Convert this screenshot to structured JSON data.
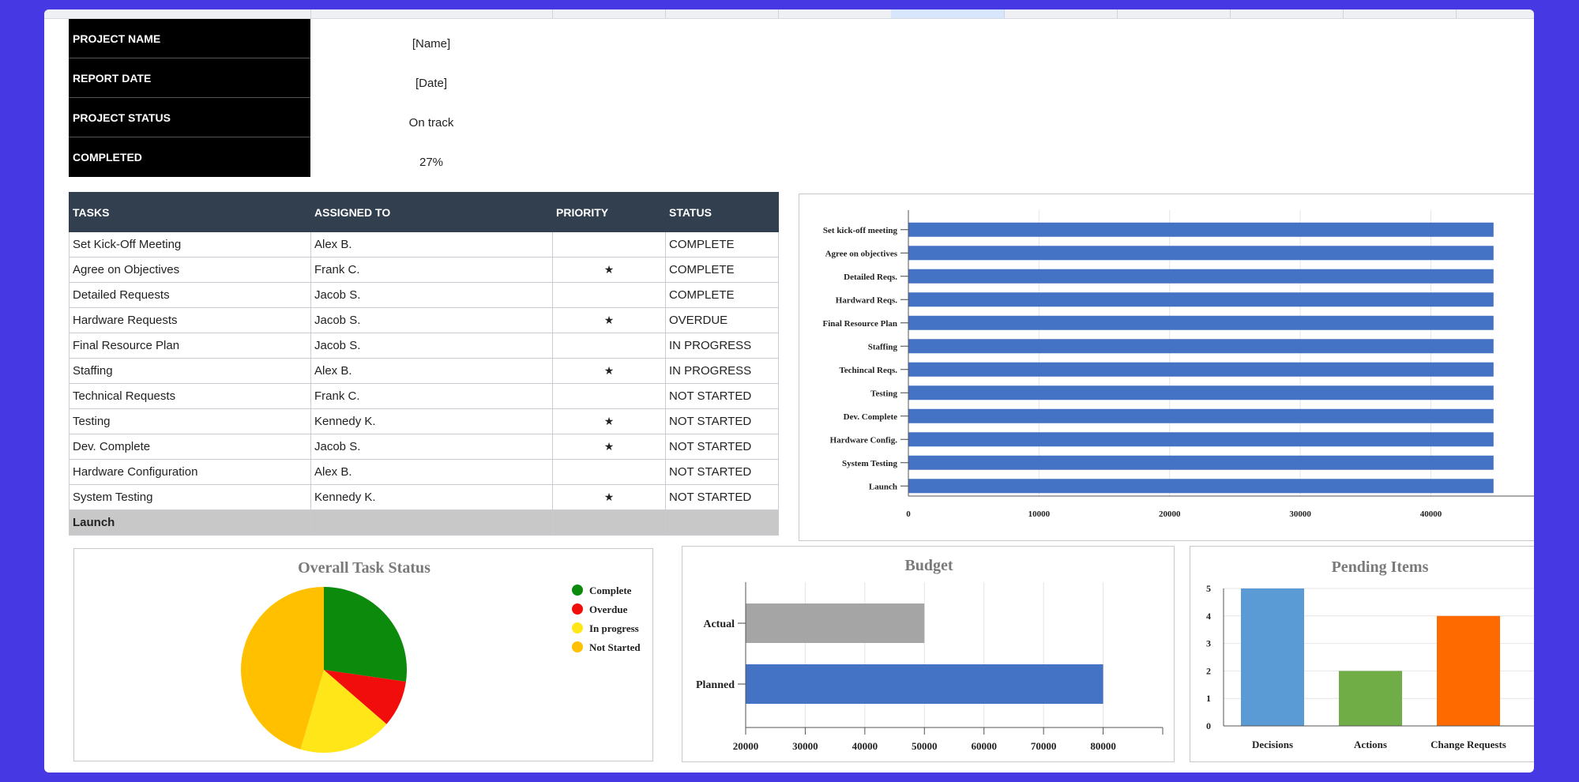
{
  "info": [
    {
      "label": "PROJECT NAME",
      "value": "[Name]"
    },
    {
      "label": "REPORT DATE",
      "value": "[Date]"
    },
    {
      "label": "PROJECT STATUS",
      "value": "On track"
    },
    {
      "label": "COMPLETED",
      "value": "27%"
    }
  ],
  "tasks": {
    "headers": [
      "TASKS",
      "ASSIGNED TO",
      "PRIORITY",
      "STATUS"
    ],
    "rows": [
      {
        "task": "Set Kick-Off Meeting",
        "assigned": "Alex B.",
        "priority": "",
        "status": "COMPLETE",
        "status_class": "st-complete"
      },
      {
        "task": "Agree on Objectives",
        "assigned": "Frank C.",
        "priority": "★",
        "status": "COMPLETE",
        "status_class": "st-complete"
      },
      {
        "task": "Detailed Requests",
        "assigned": "Jacob S.",
        "priority": "",
        "status": "COMPLETE",
        "status_class": "st-complete"
      },
      {
        "task": "Hardware Requests",
        "assigned": "Jacob S.",
        "priority": "★",
        "status": "OVERDUE",
        "status_class": "st-overdue"
      },
      {
        "task": "Final Resource Plan",
        "assigned": "Jacob S.",
        "priority": "",
        "status": "IN PROGRESS",
        "status_class": "st-progress"
      },
      {
        "task": "Staffing",
        "assigned": "Alex B.",
        "priority": "★",
        "status": "IN PROGRESS",
        "status_class": "st-progress"
      },
      {
        "task": "Technical Requests",
        "assigned": "Frank C.",
        "priority": "",
        "status": "NOT STARTED",
        "status_class": "st-notstarted"
      },
      {
        "task": "Testing",
        "assigned": "Kennedy K.",
        "priority": "★",
        "status": "NOT STARTED",
        "status_class": "st-notstarted"
      },
      {
        "task": "Dev. Complete",
        "assigned": "Jacob S.",
        "priority": "★",
        "status": "NOT STARTED",
        "status_class": "st-notstarted"
      },
      {
        "task": "Hardware Configuration",
        "assigned": "Alex B.",
        "priority": "",
        "status": "NOT STARTED",
        "status_class": "st-notstarted"
      },
      {
        "task": "System Testing",
        "assigned": "Kennedy K.",
        "priority": "★",
        "status": "NOT STARTED",
        "status_class": "st-notstarted"
      }
    ],
    "final_row": "Launch"
  },
  "colors": {
    "bar_blue": "#4472c4",
    "bar_gray": "#a5a5a5",
    "complete": "#0b8a0b",
    "overdue": "#f20d0d",
    "in_progress": "#ffe619",
    "not_started": "#ffc000",
    "decisions": "#5b9bd5",
    "actions": "#70ad47",
    "change_requests": "#ff6a00"
  },
  "chart_data": [
    {
      "type": "bar",
      "orientation": "horizontal",
      "title": "",
      "categories": [
        "Set kick-off meeting",
        "Agree on objectives",
        "Detailed Reqs.",
        "Hardward Reqs.",
        "Final Resource Plan",
        "Staffing",
        "Techincal Reqs.",
        "Testing",
        "Dev. Complete",
        "Hardware Config.",
        "System Testing",
        "Launch"
      ],
      "values": [
        44800,
        44800,
        44800,
        44800,
        44800,
        44800,
        44800,
        44800,
        44800,
        44800,
        44800,
        44800
      ],
      "xticks": [
        0,
        10000,
        20000,
        30000,
        40000
      ],
      "xlim": [
        0,
        48500
      ],
      "grid": true
    },
    {
      "type": "pie",
      "title": "Overall Task Status",
      "labels": [
        "Complete",
        "Overdue",
        "In progress",
        "Not Started"
      ],
      "values": [
        3,
        1,
        2,
        5
      ],
      "legend": "right"
    },
    {
      "type": "bar",
      "orientation": "horizontal",
      "title": "Budget",
      "categories": [
        "Actual",
        "Planned"
      ],
      "values": [
        50000,
        80000
      ],
      "xticks": [
        20000,
        30000,
        40000,
        50000,
        60000,
        70000,
        80000
      ],
      "xlim": [
        20000,
        90000
      ],
      "grid": true
    },
    {
      "type": "bar",
      "title": "Pending Items",
      "categories": [
        "Decisions",
        "Actions",
        "Change Requests"
      ],
      "values": [
        5,
        2,
        4
      ],
      "yticks": [
        0,
        1,
        2,
        3,
        4,
        5
      ],
      "ylim": [
        0,
        5
      ],
      "grid": true
    }
  ]
}
